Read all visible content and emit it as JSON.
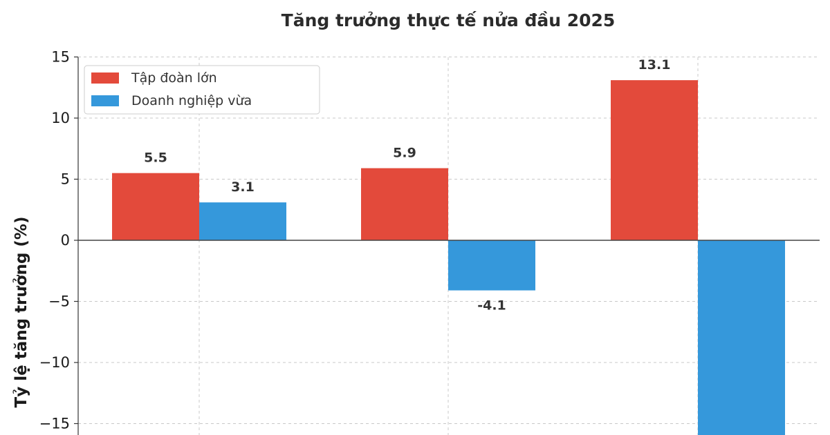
{
  "chart_data": {
    "type": "bar",
    "title": "Tăng trưởng thực tế nửa đầu 2025",
    "xlabel": "",
    "ylabel": "Tỷ lệ tăng trưởng (%)",
    "ylim": [
      -16,
      15
    ],
    "yticks": [
      15,
      10,
      5,
      0,
      -5,
      -10,
      -15
    ],
    "ytick_labels": [
      "15",
      "10",
      "5",
      "0",
      "−5",
      "−10",
      "−15"
    ],
    "grid": true,
    "legend_position": "top-left",
    "categories": [
      "",
      "",
      ""
    ],
    "series": [
      {
        "name": "Tập đoàn lớn",
        "color": "#e34a3b",
        "values": [
          5.5,
          5.9,
          13.1
        ],
        "labels": [
          "5.5",
          "5.9",
          "13.1"
        ]
      },
      {
        "name": "Doanh nghiệp vừa",
        "color": "#3598db",
        "values": [
          3.1,
          -4.1,
          -16
        ],
        "labels": [
          "3.1",
          "-4.1",
          ""
        ]
      }
    ]
  }
}
